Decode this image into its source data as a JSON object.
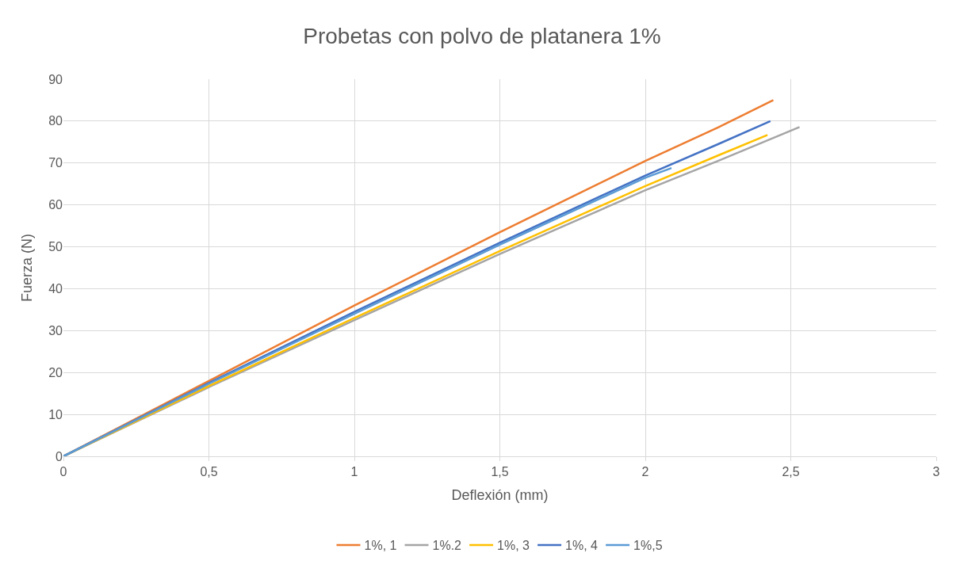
{
  "chart_data": {
    "type": "line",
    "title": "Probetas con polvo de platanera 1%",
    "xlabel": "Deflexión (mm)",
    "ylabel": "Fuerza (N)",
    "xlim": [
      0,
      3
    ],
    "xticks": [
      0,
      {
        "value": 0.5,
        "label": "0,5"
      },
      1,
      {
        "value": 1.5,
        "label": "1,5"
      },
      2,
      {
        "value": 2.5,
        "label": "2,5"
      },
      3
    ],
    "ylim": [
      0,
      90
    ],
    "yticks": [
      0,
      10,
      20,
      30,
      40,
      50,
      60,
      70,
      80,
      90
    ],
    "grid": true,
    "legend": "bottom",
    "marker": "none",
    "line_style": "solid",
    "series": [
      {
        "name": "1%, 1",
        "color": "#ed7d31",
        "x": [
          0,
          0.5,
          1,
          1.5,
          2,
          2.25,
          2.44
        ],
        "values": [
          0,
          18,
          36,
          53.5,
          70.5,
          78.5,
          85
        ]
      },
      {
        "name": "1%.2",
        "color": "#a5a5a5",
        "x": [
          0,
          0.5,
          1,
          1.5,
          2,
          2.25,
          2.53
        ],
        "values": [
          0,
          16.5,
          32.5,
          48.3,
          63.5,
          70.5,
          78.6
        ]
      },
      {
        "name": "1%, 3",
        "color": "#ffc000",
        "x": [
          0,
          0.5,
          1,
          1.5,
          2,
          2.25,
          2.42
        ],
        "values": [
          0,
          16.8,
          33,
          49,
          64.5,
          71.8,
          76.7
        ]
      },
      {
        "name": "1%, 4",
        "color": "#4472c4",
        "x": [
          0,
          0.5,
          1,
          1.5,
          2,
          2.25,
          2.43
        ],
        "values": [
          0,
          17.5,
          34.5,
          51,
          67,
          74.5,
          80
        ]
      },
      {
        "name": "1%,5",
        "color": "#5b9bd5",
        "x": [
          0,
          0.5,
          1,
          1.5,
          2,
          2.09
        ],
        "values": [
          0,
          17.3,
          34,
          50.5,
          66.5,
          68.8
        ]
      }
    ]
  }
}
